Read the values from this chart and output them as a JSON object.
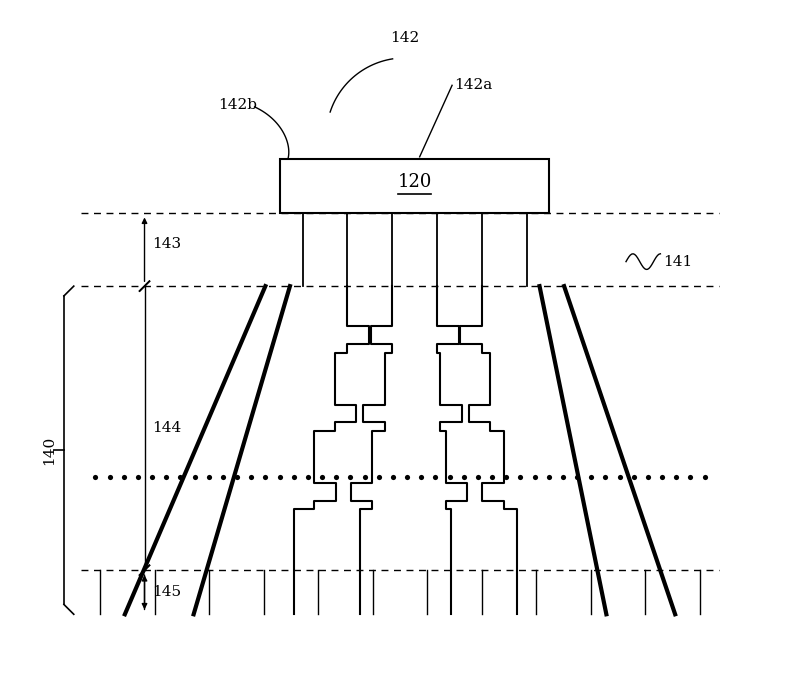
{
  "bg_color": "#ffffff",
  "lc": "#000000",
  "fig_width": 8.0,
  "fig_height": 6.8,
  "label_120": "120",
  "label_140": "140",
  "label_141": "141",
  "label_142": "142",
  "label_142a": "142a",
  "label_142b": "142b",
  "label_143": "143",
  "label_144": "144",
  "label_145": "145",
  "fs": 11,
  "lw_outer": 3.0,
  "lw_inner": 1.5,
  "lw_thin": 1.0
}
